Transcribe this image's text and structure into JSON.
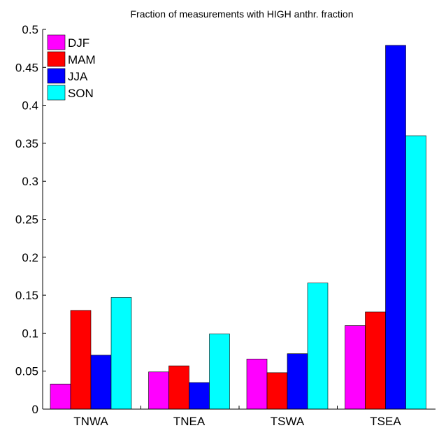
{
  "chart_data": {
    "type": "bar",
    "title": "Fraction of measurements with HIGH anthr. fraction",
    "xlabel": "",
    "ylabel": "",
    "categories": [
      "TNWA",
      "TNEA",
      "TSWA",
      "TSEA"
    ],
    "ylim": [
      0,
      0.5
    ],
    "yticks": [
      "0",
      "0.05",
      "0.1",
      "0.15",
      "0.2",
      "0.25",
      "0.3",
      "0.35",
      "0.4",
      "0.45",
      "0.5"
    ],
    "grid": false,
    "legend_position": "top-left",
    "series": [
      {
        "name": "DJF",
        "color": "#ff00ff",
        "values": [
          0.033,
          0.049,
          0.066,
          0.11
        ]
      },
      {
        "name": "MAM",
        "color": "#ff0000",
        "values": [
          0.13,
          0.057,
          0.048,
          0.128
        ]
      },
      {
        "name": "JJA",
        "color": "#0000ff",
        "values": [
          0.071,
          0.035,
          0.073,
          0.479
        ]
      },
      {
        "name": "SON",
        "color": "#00ffff",
        "values": [
          0.147,
          0.099,
          0.166,
          0.36
        ]
      }
    ]
  }
}
